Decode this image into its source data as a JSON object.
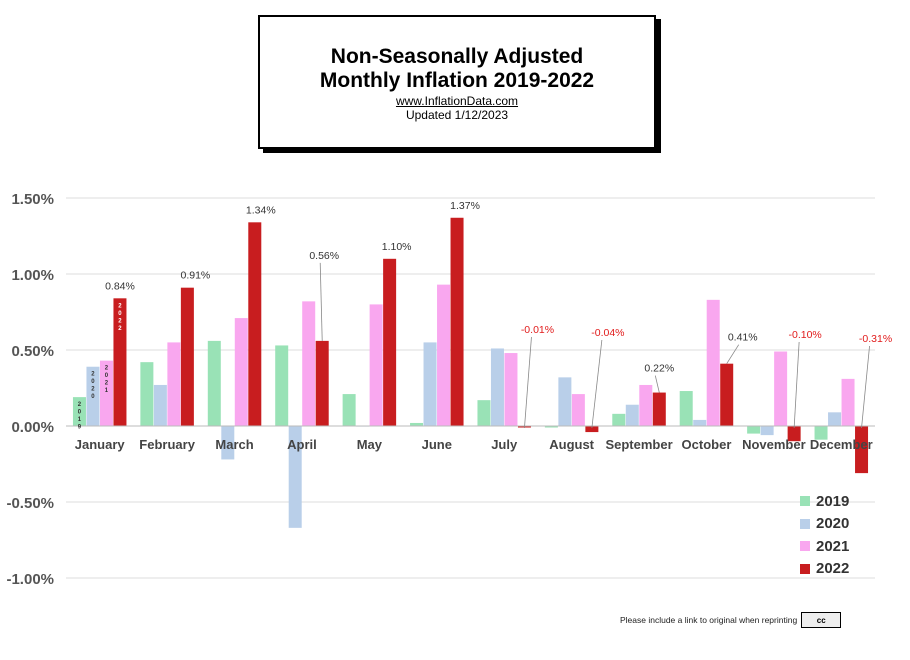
{
  "header": {
    "title_line1": "Non-Seasonally Adjusted",
    "title_line2": "Monthly Inflation 2019-2022",
    "site": "www.InflationData.com",
    "updated": "Updated   1/12/2023"
  },
  "footer": {
    "note": "Please include a link to original when reprinting",
    "license_badge": "cc"
  },
  "colors": {
    "2019": "#99e2b6",
    "2020": "#b9cfe9",
    "2021": "#f9a7ef",
    "2022": "#c81d1f",
    "grid": "#dcdcdc",
    "negative_label": "#e11b1b"
  },
  "chart_data": {
    "type": "bar",
    "title": "",
    "xlabel": "",
    "ylabel": "",
    "ylim": [
      -1.0,
      1.5
    ],
    "yticks": [
      "1.50%",
      "1.00%",
      "0.50%",
      "0.00%",
      "-0.50%",
      "-1.00%"
    ],
    "ytick_values": [
      1.5,
      1.0,
      0.5,
      0.0,
      -0.5,
      -1.0
    ],
    "grid": true,
    "legend_position": "bottom-right",
    "categories": [
      "January",
      "February",
      "March",
      "April",
      "May",
      "June",
      "July",
      "August",
      "September",
      "October",
      "November",
      "December"
    ],
    "series": [
      {
        "name": "2019",
        "color": "#99e2b6",
        "values": [
          0.19,
          0.42,
          0.56,
          0.53,
          0.21,
          0.02,
          0.17,
          -0.01,
          0.08,
          0.23,
          -0.05,
          -0.09
        ]
      },
      {
        "name": "2020",
        "color": "#b9cfe9",
        "values": [
          0.39,
          0.27,
          -0.22,
          -0.67,
          0.0,
          0.55,
          0.51,
          0.32,
          0.14,
          0.04,
          -0.06,
          0.09
        ]
      },
      {
        "name": "2021",
        "color": "#f9a7ef",
        "values": [
          0.43,
          0.55,
          0.71,
          0.82,
          0.8,
          0.93,
          0.48,
          0.21,
          0.27,
          0.83,
          0.49,
          0.31
        ]
      },
      {
        "name": "2022",
        "color": "#c81d1f",
        "values": [
          0.84,
          0.91,
          1.34,
          0.56,
          1.1,
          1.37,
          -0.01,
          -0.04,
          0.22,
          0.41,
          -0.1,
          -0.31
        ]
      }
    ],
    "data_labels_2022": [
      "0.84%",
      "0.91%",
      "1.34%",
      "0.56%",
      "1.10%",
      "1.37%",
      "-0.01%",
      "-0.04%",
      "0.22%",
      "0.41%",
      "-0.10%",
      "-0.31%"
    ],
    "bar_year_labels": [
      {
        "series": "2019",
        "text": "2019"
      },
      {
        "series": "2020",
        "text": "2020"
      },
      {
        "series": "2021",
        "text": "2021"
      },
      {
        "series": "2022",
        "text": "2022"
      }
    ]
  }
}
